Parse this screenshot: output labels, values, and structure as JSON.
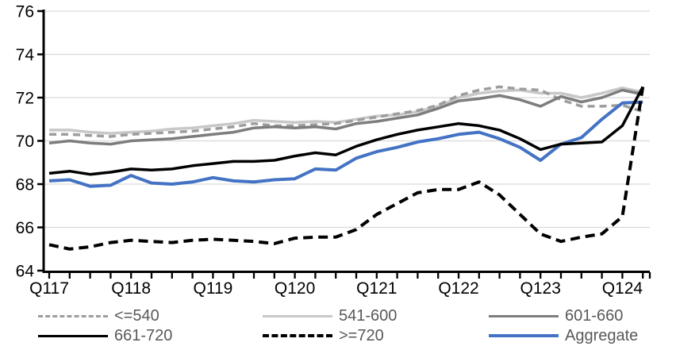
{
  "chart_data": {
    "type": "line",
    "title": "",
    "x_axis": {
      "tick_labels": [
        "Q117",
        "Q118",
        "Q119",
        "Q120",
        "Q121",
        "Q122",
        "Q123",
        "Q124"
      ],
      "points_per_year": 4,
      "n_points": 30,
      "first_point": "2017Q1",
      "last_point": "2024Q2"
    },
    "y_axis": {
      "min": 64,
      "max": 76,
      "tick_step": 2,
      "tick_labels": [
        "64",
        "66",
        "68",
        "70",
        "72",
        "74",
        "76"
      ]
    },
    "grid": true,
    "gridline_color": "#d9d9d9",
    "axis_color": "#000000",
    "legend_position": "bottom",
    "legend_text_color": "#595959",
    "draw_order": [
      1,
      0,
      2,
      5,
      3,
      4
    ],
    "series": [
      {
        "name": "<=540",
        "color": "#9d9d9d",
        "dash": "dashed",
        "width": 3.5,
        "values": [
          70.3,
          70.3,
          70.25,
          70.2,
          70.3,
          70.35,
          70.4,
          70.45,
          70.55,
          70.65,
          70.8,
          70.7,
          70.7,
          70.75,
          70.8,
          70.95,
          71.1,
          71.25,
          71.4,
          71.65,
          72.1,
          72.35,
          72.5,
          72.4,
          72.35,
          71.9,
          71.6,
          71.6,
          71.65,
          71.35
        ]
      },
      {
        "name": "541-600",
        "color": "#c8c8c8",
        "dash": "solid",
        "width": 3.5,
        "values": [
          70.5,
          70.5,
          70.4,
          70.35,
          70.4,
          70.45,
          70.55,
          70.6,
          70.7,
          70.8,
          70.95,
          70.9,
          70.85,
          70.9,
          70.85,
          71.0,
          71.15,
          71.2,
          71.35,
          71.6,
          72.0,
          72.2,
          72.3,
          72.35,
          72.2,
          72.2,
          72.0,
          72.2,
          72.45,
          72.25
        ]
      },
      {
        "name": "601-660",
        "color": "#7d7d7d",
        "dash": "solid",
        "width": 3.5,
        "values": [
          69.9,
          70.0,
          69.9,
          69.85,
          70.0,
          70.05,
          70.1,
          70.2,
          70.3,
          70.4,
          70.6,
          70.65,
          70.6,
          70.65,
          70.55,
          70.8,
          70.9,
          71.05,
          71.2,
          71.5,
          71.85,
          71.95,
          72.1,
          71.9,
          71.6,
          72.05,
          71.8,
          72.0,
          72.35,
          72.15
        ]
      },
      {
        "name": "661-720",
        "color": "#000000",
        "dash": "solid",
        "width": 3.5,
        "values": [
          68.5,
          68.6,
          68.45,
          68.55,
          68.7,
          68.65,
          68.7,
          68.85,
          68.95,
          69.05,
          69.05,
          69.1,
          69.3,
          69.45,
          69.35,
          69.75,
          70.05,
          70.3,
          70.5,
          70.65,
          70.8,
          70.7,
          70.5,
          70.1,
          69.6,
          69.85,
          69.9,
          69.95,
          70.7,
          72.5
        ]
      },
      {
        "name": ">=720",
        "color": "#000000",
        "dash": "dashed",
        "width": 4,
        "values": [
          65.2,
          65.0,
          65.1,
          65.3,
          65.4,
          65.35,
          65.3,
          65.4,
          65.45,
          65.4,
          65.35,
          65.25,
          65.5,
          65.55,
          65.55,
          65.9,
          66.6,
          67.1,
          67.6,
          67.75,
          67.75,
          68.1,
          67.5,
          66.6,
          65.7,
          65.35,
          65.55,
          65.7,
          66.5,
          72.5
        ]
      },
      {
        "name": "Aggregate",
        "color": "#4472c4",
        "dash": "solid",
        "width": 4,
        "values": [
          68.15,
          68.2,
          67.9,
          67.95,
          68.4,
          68.05,
          68.0,
          68.1,
          68.3,
          68.15,
          68.1,
          68.2,
          68.25,
          68.7,
          68.65,
          69.2,
          69.5,
          69.7,
          69.95,
          70.1,
          70.3,
          70.4,
          70.1,
          69.7,
          69.1,
          69.85,
          70.15,
          71.0,
          71.75,
          71.8
        ]
      }
    ]
  }
}
